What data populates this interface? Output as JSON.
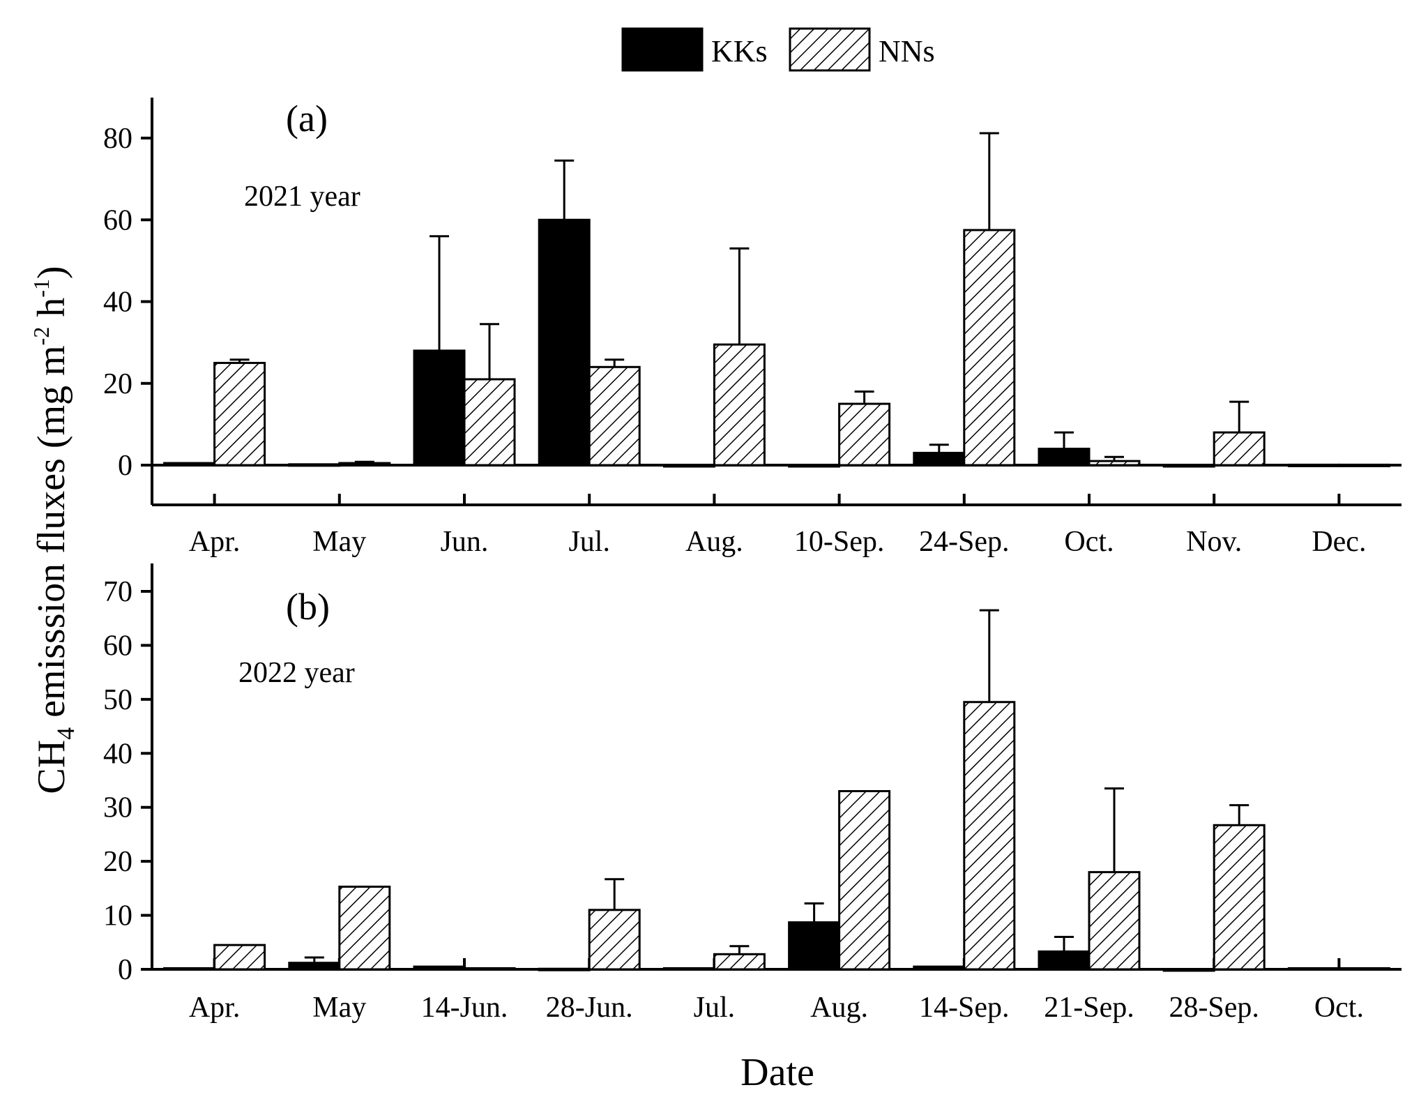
{
  "figure": {
    "ylabel_main": "CH",
    "ylabel_sub": "4",
    "ylabel_rest": " emisssion fluxes (mg m",
    "ylabel_sup1": "-2",
    "ylabel_mid": " h",
    "ylabel_sup2": "-1",
    "ylabel_end": ")",
    "xlabel": "Date"
  },
  "legend": {
    "items": [
      {
        "label": "KKs",
        "pattern": "solid"
      },
      {
        "label": "NNs",
        "pattern": "hatch"
      }
    ]
  },
  "colors": {
    "kks": "#000000",
    "nns_hatch": "#000000",
    "background": "#ffffff"
  },
  "chart_data": [
    {
      "type": "bar",
      "panel_label": "(a)",
      "year_label": "2021 year",
      "categories": [
        "Apr.",
        "May",
        "Jun.",
        "Jul.",
        "Aug.",
        "10-Sep.",
        "24-Sep.",
        "Oct.",
        "Nov.",
        "Dec."
      ],
      "ylim": [
        -10,
        90
      ],
      "yticks": [
        0,
        20,
        40,
        60,
        80
      ],
      "series": [
        {
          "name": "KKs",
          "values": [
            0.5,
            0.2,
            28,
            60,
            0,
            0,
            3,
            4,
            0,
            0.1
          ],
          "errors": [
            0,
            0,
            28,
            14.5,
            0,
            0,
            2,
            4,
            0,
            0
          ]
        },
        {
          "name": "NNs",
          "values": [
            25,
            0.5,
            21,
            24,
            29.5,
            15,
            57.5,
            1,
            8,
            0.1
          ],
          "errors": [
            0.8,
            0.3,
            13.5,
            1.8,
            23.5,
            3,
            23.7,
            1,
            7.5,
            0
          ]
        }
      ]
    },
    {
      "type": "bar",
      "panel_label": "(b)",
      "year_label": "2022 year",
      "categories": [
        "Apr.",
        "May",
        "14-Jun.",
        "28-Jun.",
        "Jul.",
        "Aug.",
        "14-Sep.",
        "21-Sep.",
        "28-Sep.",
        "Oct."
      ],
      "ylim": [
        0,
        75
      ],
      "yticks": [
        0,
        10,
        20,
        30,
        40,
        50,
        60,
        70
      ],
      "series": [
        {
          "name": "KKs",
          "values": [
            0.2,
            1.2,
            0.5,
            0.1,
            0.2,
            8.7,
            0.5,
            3.3,
            0,
            0.2
          ],
          "errors": [
            0,
            1,
            0,
            0,
            0,
            3.5,
            0,
            2.7,
            0,
            0
          ]
        },
        {
          "name": "NNs",
          "values": [
            4.5,
            15.3,
            0.2,
            11,
            2.8,
            33,
            49.5,
            18,
            26.7,
            0.2
          ],
          "errors": [
            0,
            0,
            0,
            5.7,
            1.5,
            0,
            17,
            15.5,
            3.7,
            0
          ]
        }
      ]
    }
  ]
}
